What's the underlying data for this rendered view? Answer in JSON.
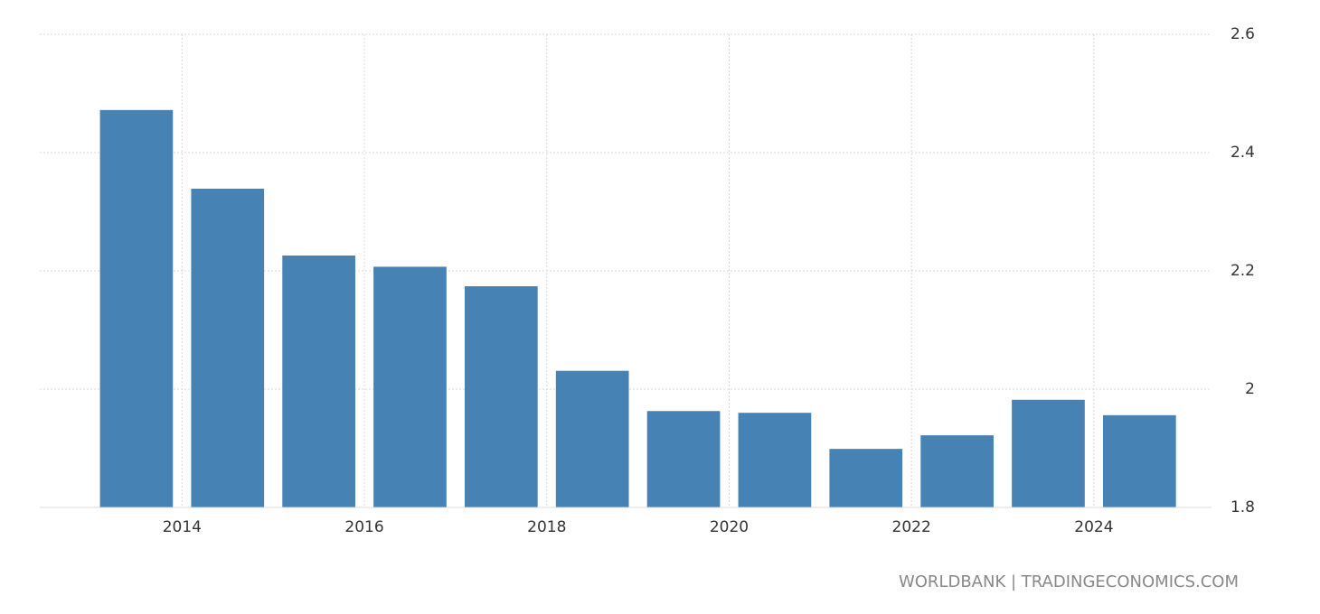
{
  "chart_data": {
    "type": "bar",
    "x": [
      2013,
      2014,
      2015,
      2016,
      2017,
      2018,
      2019,
      2020,
      2021,
      2022,
      2023,
      2024
    ],
    "values": [
      2.472,
      2.339,
      2.226,
      2.207,
      2.174,
      2.031,
      1.963,
      1.96,
      1.899,
      1.922,
      1.982,
      1.956
    ],
    "color": "#4682b4",
    "xlim": [
      2012.44,
      2025.29
    ],
    "xticks": [
      2014,
      2016,
      2018,
      2020,
      2022,
      2024
    ],
    "ylim": [
      1.8,
      2.6
    ],
    "yticks": [
      1.8,
      2,
      2.2,
      2.4,
      2.6
    ],
    "grid": true,
    "source": "WORLDBANK | TRADINGECONOMICS.COM"
  }
}
